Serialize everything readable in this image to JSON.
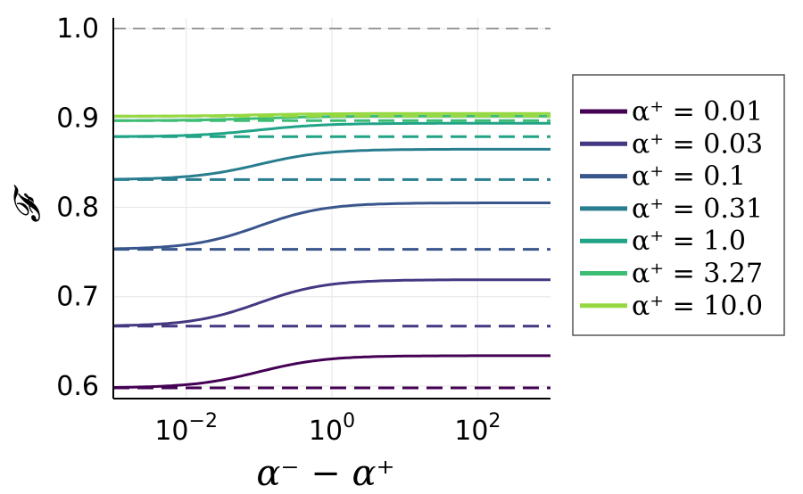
{
  "chart_data": {
    "type": "line",
    "xlabel": "α⁻ − α⁺",
    "ylabel": "𝓕",
    "xscale": "log",
    "xlim": [
      0.001,
      1000
    ],
    "ylim": [
      0.586,
      1.012
    ],
    "x_ticks": [
      {
        "value": 0.01,
        "base": "10",
        "exp": "−2"
      },
      {
        "value": 1,
        "base": "10",
        "exp": "0"
      },
      {
        "value": 100,
        "base": "10",
        "exp": "2"
      }
    ],
    "y_ticks": [
      {
        "value": 0.6,
        "label": "0.6"
      },
      {
        "value": 0.7,
        "label": "0.7"
      },
      {
        "value": 0.8,
        "label": "0.8"
      },
      {
        "value": 0.9,
        "label": "0.9"
      },
      {
        "value": 1.0,
        "label": "1.0"
      }
    ],
    "grid": true,
    "legend_position": "right-outside",
    "reference_line": {
      "y": 1.0,
      "style": "dashed",
      "color": "#999999"
    },
    "legend_prefix": "α⁺ = ",
    "series": [
      {
        "name": "0.01",
        "color": "#440154",
        "low": 0.598,
        "high": 0.634,
        "baseline": 0.598
      },
      {
        "name": "0.03",
        "color": "#453781",
        "low": 0.667,
        "high": 0.719,
        "baseline": 0.667
      },
      {
        "name": "0.1",
        "color": "#39568c",
        "low": 0.753,
        "high": 0.805,
        "baseline": 0.753
      },
      {
        "name": "0.31",
        "color": "#287d8e",
        "low": 0.831,
        "high": 0.865,
        "baseline": 0.831
      },
      {
        "name": "1.0",
        "color": "#20a386",
        "low": 0.879,
        "high": 0.894,
        "baseline": 0.879
      },
      {
        "name": "3.27",
        "color": "#3dbc74",
        "low": 0.897,
        "high": 0.902,
        "baseline": 0.897
      },
      {
        "name": "10.0",
        "color": "#95d840",
        "low": 0.902,
        "high": 0.905,
        "baseline": 0.902
      }
    ]
  }
}
